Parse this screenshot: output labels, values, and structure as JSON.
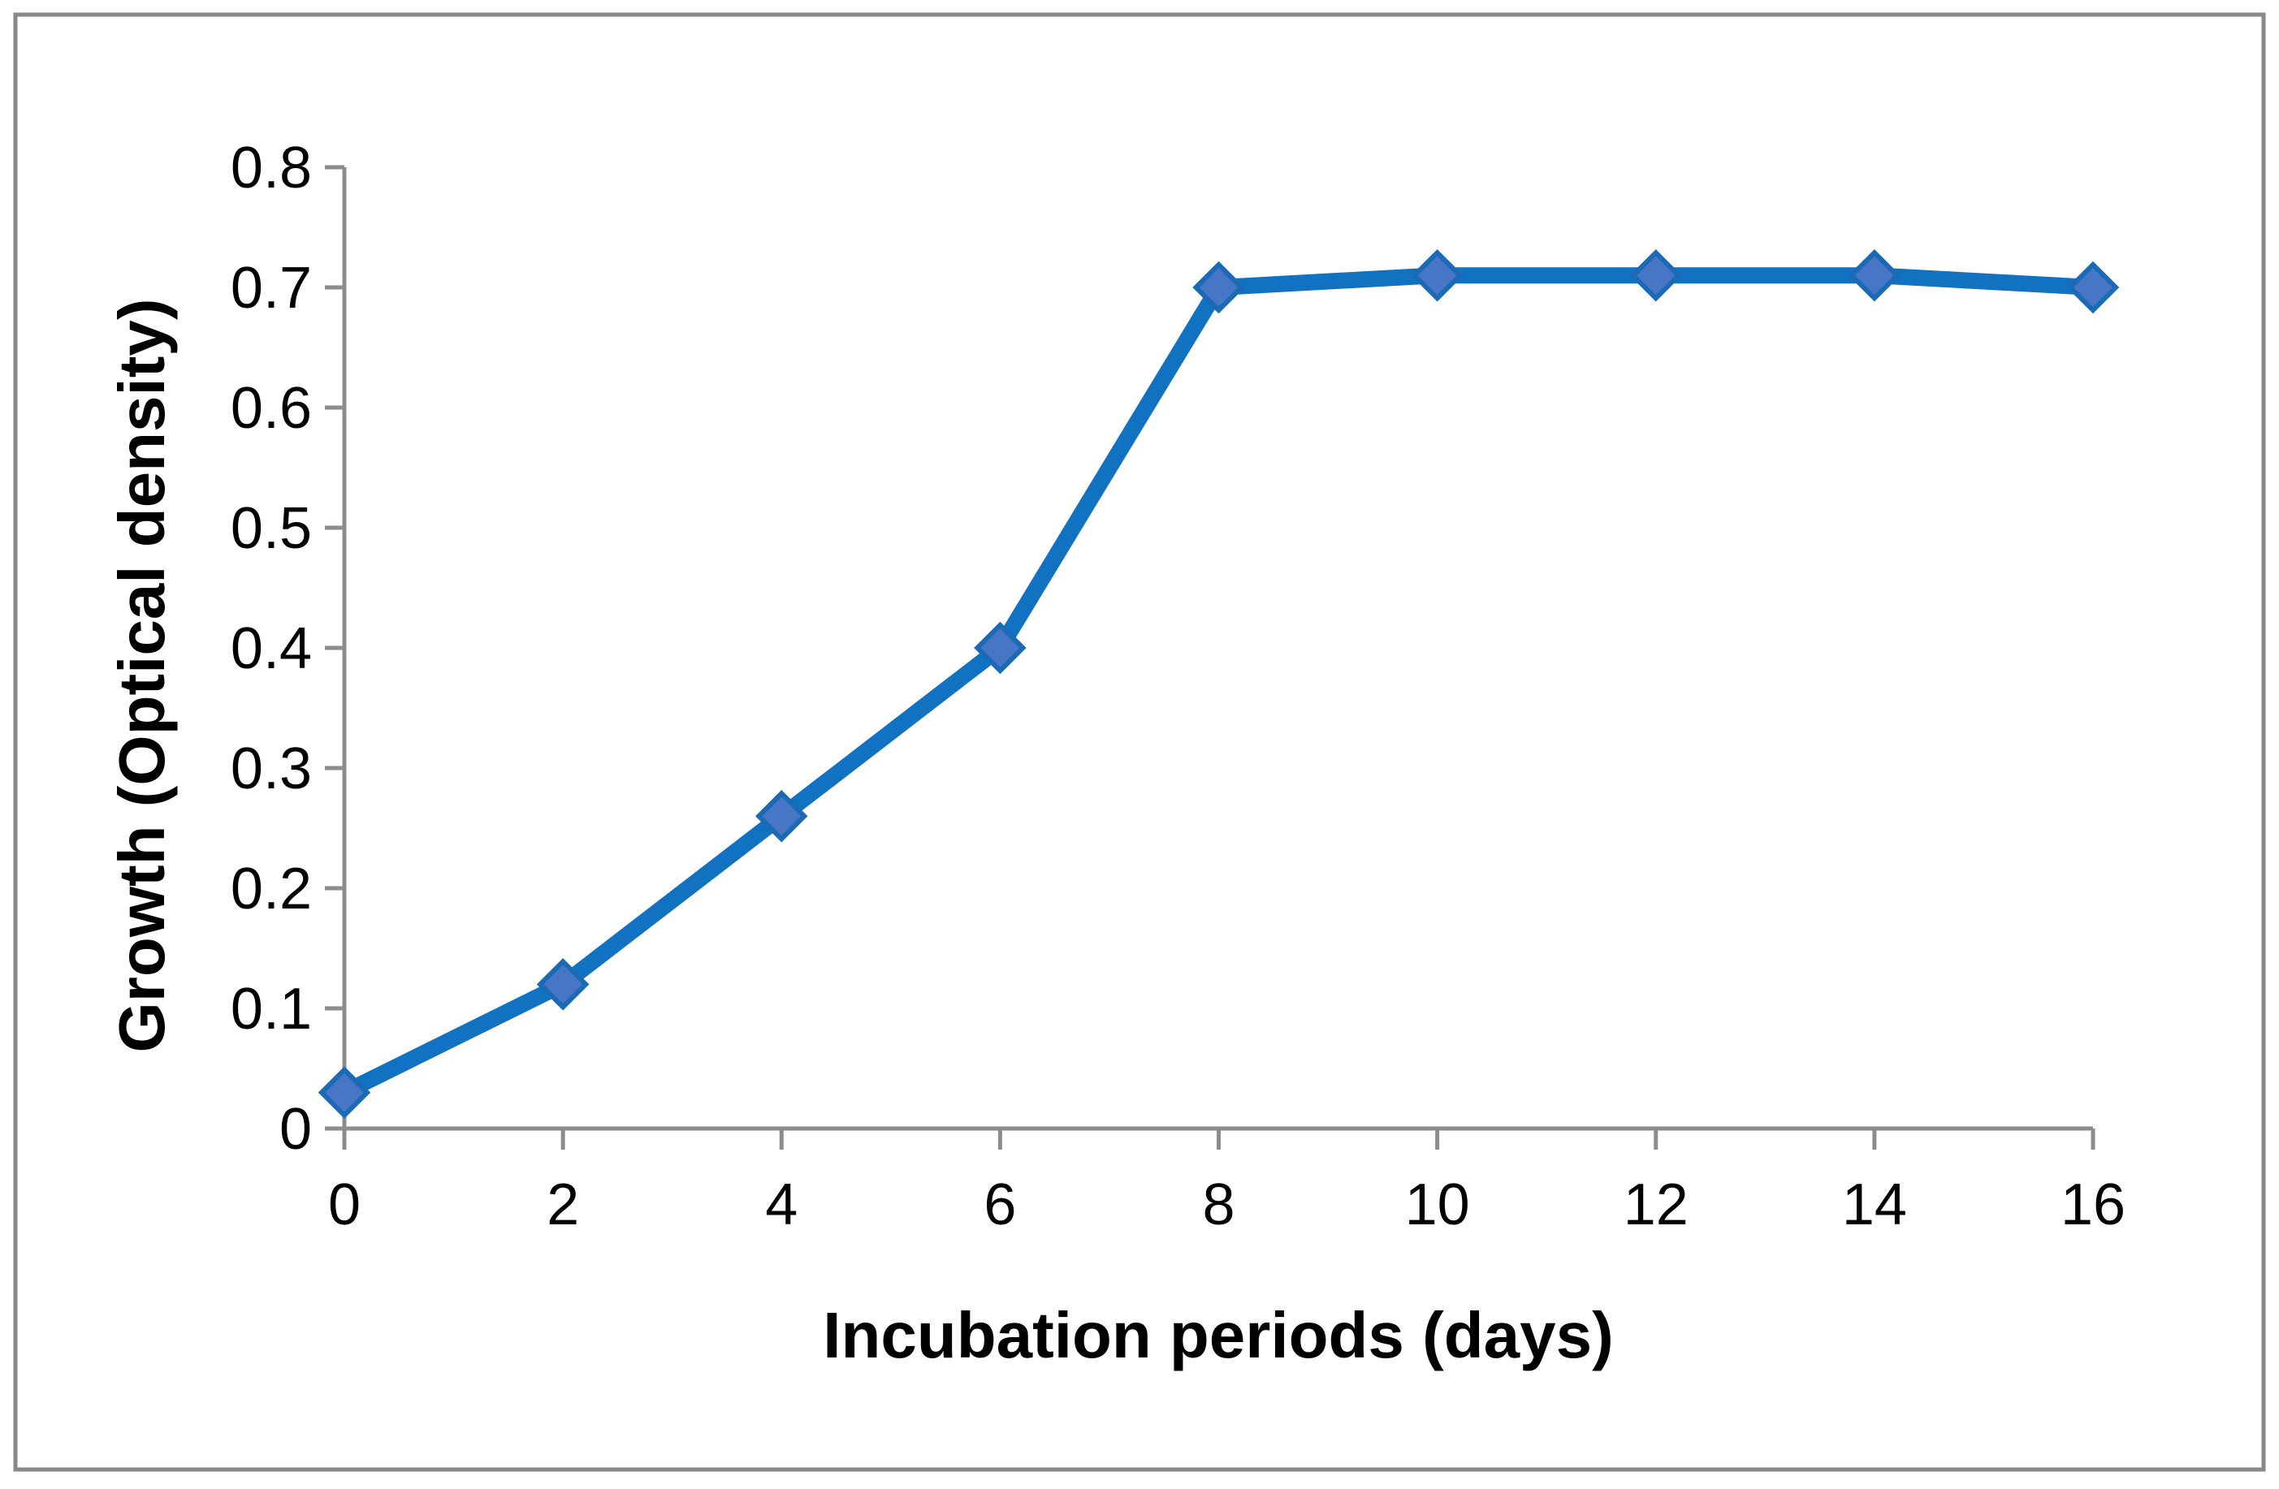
{
  "chart_data": {
    "type": "line",
    "title": "",
    "xlabel": "Incubation periods (days)",
    "ylabel": "Growth (Optical density)",
    "x": [
      0,
      2,
      4,
      6,
      8,
      10,
      12,
      14,
      16
    ],
    "series": [
      {
        "name": "Growth (Optical density)",
        "values": [
          0.03,
          0.12,
          0.26,
          0.4,
          0.7,
          0.71,
          0.71,
          0.71,
          0.7
        ]
      }
    ],
    "xlim": [
      0,
      16
    ],
    "ylim": [
      0,
      0.8
    ],
    "xticks": [
      "0",
      "2",
      "4",
      "6",
      "8",
      "10",
      "12",
      "14",
      "16"
    ],
    "yticks": [
      "0",
      "0.1",
      "0.2",
      "0.3",
      "0.4",
      "0.5",
      "0.6",
      "0.7",
      "0.8"
    ],
    "grid": false,
    "legend_position": "none",
    "marker": "diamond",
    "colors": {
      "line": "#1172c2",
      "marker_fill": "#4876c7",
      "marker_stroke": "#1a6ab5",
      "axis": "#8c8c8c",
      "outer_border": "#898989",
      "text": "#000000"
    }
  }
}
